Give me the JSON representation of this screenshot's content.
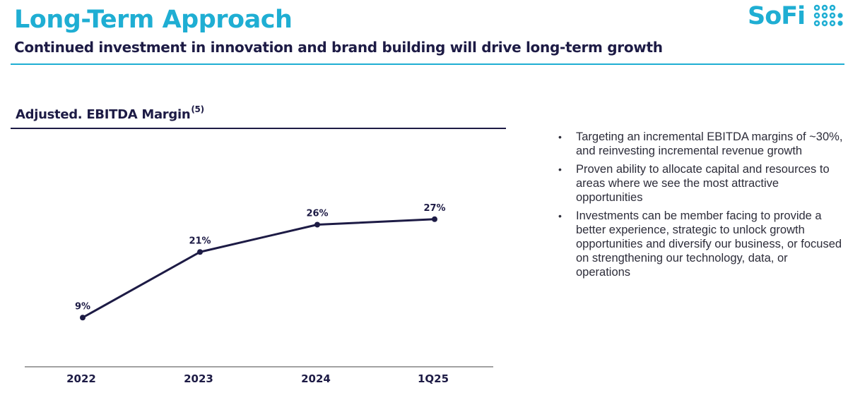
{
  "header": {
    "title": "Long-Term Approach",
    "subtitle": "Continued investment in innovation and brand building will drive long-term growth"
  },
  "logo": {
    "text": "SoFi",
    "icon": "sofi-dots-icon",
    "color": "#1faed3"
  },
  "chart_heading": {
    "text": "Adjusted. EBITDA Margin",
    "footnote": "(5)"
  },
  "chart_data": {
    "type": "line",
    "title": "Adjusted. EBITDA Margin",
    "categories": [
      "2022",
      "2023",
      "2024",
      "1Q25"
    ],
    "series": [
      {
        "values": [
          9,
          21,
          26,
          27
        ],
        "labels": [
          "9%",
          "21%",
          "26%",
          "27%"
        ],
        "color": "#1d1b45"
      }
    ],
    "ylim": [
      0,
      40
    ],
    "grid": false,
    "legend": "none"
  },
  "bullets": [
    "Targeting an incremental EBITDA margins of ~30%, and reinvesting incremental revenue growth",
    "Proven ability to allocate capital and resources to areas where we see the most attractive opportunities",
    "Investments can be member facing to provide a better experience, strategic to unlock growth opportunities and diversify our business, or focused on strengthening our technology, data, or operations"
  ]
}
